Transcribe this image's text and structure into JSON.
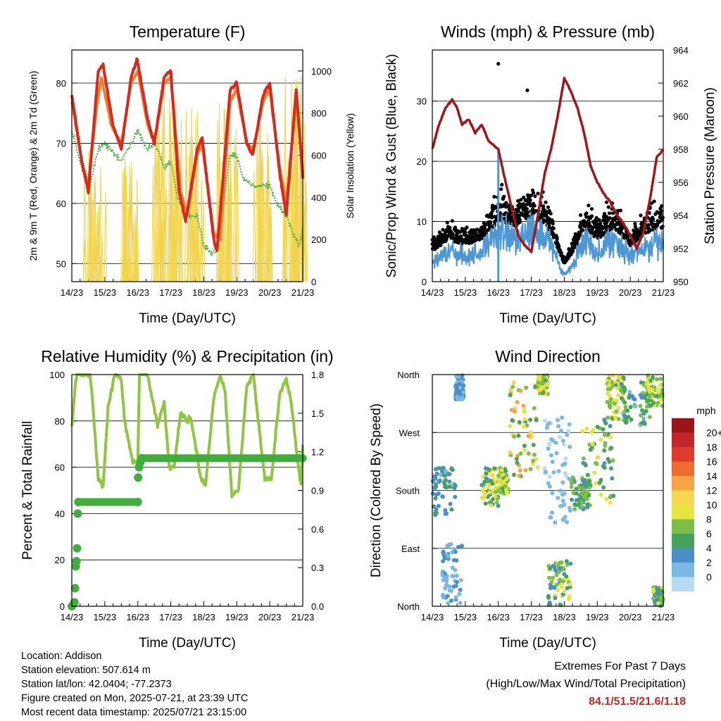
{
  "colors": {
    "temp2m": "#d42a20",
    "temp9m": "#f07f2c",
    "dewpoint": "#45b142",
    "solar": "#f2d34b",
    "wind": "#000000",
    "gust": "#4f97d4",
    "pressure": "#a3151a",
    "rh": "#8ec73f",
    "precip": "#3fae3a"
  },
  "chart_data": [
    {
      "type": "line",
      "title": "Temperature (F)",
      "xlabel": "Time (Day/UTC)",
      "ylabel": "2m & 9m T (Red, Orange) & 2m Td (Green)",
      "y2label": "Solar Insolation (Yellow)",
      "x_ticks": [
        "14/23",
        "15/23",
        "16/23",
        "17/23",
        "18/23",
        "19/23",
        "20/23",
        "21/23"
      ],
      "xlim": [
        0,
        7
      ],
      "ylim": [
        47,
        85.5
      ],
      "y_ticks": [
        50,
        60,
        70,
        80
      ],
      "y2lim": [
        0,
        1100
      ],
      "y2_ticks": [
        0,
        200,
        400,
        600,
        800,
        1000
      ],
      "grid": true,
      "series": [
        {
          "key": "temp2m",
          "x": [
            0,
            0.3,
            0.5,
            0.8,
            0.95,
            1.25,
            1.5,
            1.8,
            1.98,
            2.3,
            2.5,
            2.8,
            3.0,
            3.25,
            3.45,
            3.8,
            3.95,
            4.3,
            4.4,
            4.8,
            5.0,
            5.3,
            5.48,
            5.8,
            6.0,
            6.3,
            6.5,
            6.8,
            6.9,
            7.0
          ],
          "y": [
            78,
            67,
            62,
            82,
            83,
            73,
            69,
            81,
            84,
            74,
            70,
            81,
            82,
            62,
            57,
            69,
            71,
            54,
            52,
            79,
            80,
            70,
            68,
            78,
            80,
            65,
            58,
            79,
            72,
            64
          ]
        },
        {
          "key": "temp9m",
          "x": [
            0,
            0.3,
            0.5,
            0.75,
            0.9,
            1.2,
            1.5,
            1.8,
            2.0,
            2.3,
            2.5,
            2.8,
            3.0,
            3.3,
            3.5,
            3.8,
            3.95,
            4.3,
            4.5,
            4.8,
            5.0,
            5.3,
            5.5,
            5.8,
            6.0,
            6.3,
            6.5,
            6.8,
            6.9,
            7.0
          ],
          "y": [
            77,
            67,
            63,
            76,
            81,
            73,
            70,
            80,
            82,
            73,
            70,
            80,
            81,
            62,
            58,
            68,
            70,
            55,
            54,
            77,
            79,
            70,
            69,
            77,
            79,
            66,
            60,
            77,
            72,
            65
          ]
        },
        {
          "key": "dewpoint",
          "x": [
            0,
            0.2,
            0.5,
            0.8,
            1.0,
            1.3,
            1.5,
            1.8,
            2.0,
            2.3,
            2.5,
            2.8,
            3.0,
            3.2,
            3.5,
            3.8,
            4.0,
            4.2,
            4.4,
            4.8,
            5.0,
            5.2,
            5.5,
            5.8,
            6.0,
            6.2,
            6.5,
            6.7,
            6.9,
            7.0
          ],
          "y": [
            72,
            68,
            62,
            69,
            70,
            68,
            67,
            70,
            72,
            69,
            70,
            66,
            67,
            61,
            58,
            58,
            53,
            52,
            52,
            68,
            68,
            64,
            63,
            63,
            63,
            60,
            58,
            55,
            53,
            56
          ]
        },
        {
          "key": "solar",
          "peaks": [
            [
              0.55,
              640
            ],
            [
              0.85,
              560
            ],
            [
              1.6,
              660
            ],
            [
              1.85,
              600
            ],
            [
              2.6,
              780
            ],
            [
              2.9,
              1000
            ],
            [
              3.15,
              920
            ],
            [
              3.6,
              1100
            ],
            [
              3.9,
              860
            ],
            [
              4.55,
              1010
            ],
            [
              4.85,
              760
            ],
            [
              5.6,
              1000
            ],
            [
              5.9,
              850
            ],
            [
              6.55,
              1050
            ],
            [
              6.85,
              1080
            ],
            [
              6.95,
              1030
            ]
          ]
        }
      ]
    },
    {
      "type": "line",
      "title": "Winds (mph) & Pressure (mb)",
      "xlabel": "Time (Day/UTC)",
      "ylabel": "Sonic/Prop Wind & Gust (Blue, Black)",
      "y2label": "Station Pressure (Maroon)",
      "x_ticks": [
        "14/23",
        "15/23",
        "16/23",
        "17/23",
        "18/23",
        "19/23",
        "20/23",
        "21/23"
      ],
      "xlim": [
        0,
        7
      ],
      "ylim": [
        0,
        38.5
      ],
      "y_ticks": [
        0,
        10,
        20,
        30
      ],
      "y2lim": [
        950,
        964
      ],
      "y2_ticks": [
        950,
        952,
        954,
        956,
        958,
        960,
        962,
        964
      ],
      "grid": true,
      "series": [
        {
          "key": "pressure",
          "x": [
            0,
            0.2,
            0.4,
            0.6,
            0.75,
            0.9,
            1.1,
            1.3,
            1.5,
            1.7,
            2.0,
            2.2,
            2.4,
            2.6,
            2.8,
            3.0,
            3.2,
            3.4,
            3.6,
            3.8,
            4.0,
            4.2,
            4.4,
            4.6,
            4.8,
            5.0,
            5.2,
            5.4,
            5.6,
            5.8,
            6.0,
            6.2,
            6.4,
            6.6,
            6.8,
            7.0
          ],
          "y": [
            958,
            959.5,
            960.5,
            961.0,
            960.5,
            959.5,
            959.8,
            959.0,
            959.5,
            958.5,
            958.0,
            956.2,
            954.5,
            952.8,
            952.2,
            951.8,
            954.0,
            956.5,
            958.0,
            960.0,
            962.3,
            961.5,
            960.5,
            959.0,
            957.0,
            956.0,
            955.3,
            954.8,
            954.0,
            953.5,
            952.8,
            952.0,
            953.0,
            955.0,
            957.5,
            958.0
          ]
        },
        {
          "key": "wind",
          "avg": [
            [
              0,
              3
            ],
            [
              0.5,
              5
            ],
            [
              1.0,
              4
            ],
            [
              1.5,
              5
            ],
            [
              2.0,
              8
            ],
            [
              2.5,
              7
            ],
            [
              3.0,
              9
            ],
            [
              3.5,
              7
            ],
            [
              4.0,
              1
            ],
            [
              4.3,
              3
            ],
            [
              4.6,
              7
            ],
            [
              5.0,
              5
            ],
            [
              5.5,
              7
            ],
            [
              6.0,
              4
            ],
            [
              6.5,
              6
            ],
            [
              7.0,
              7
            ]
          ]
        },
        {
          "key": "gust",
          "points": [
            [
              2.0,
              36.2
            ],
            [
              2.88,
              31.8
            ]
          ]
        }
      ]
    },
    {
      "type": "line",
      "title": "Relative Humidity (%) & Precipitation (in)",
      "xlabel": "Time (Day/UTC)",
      "ylabel": "Percent & Total Rainfall",
      "x_ticks": [
        "14/23",
        "15/23",
        "16/23",
        "17/23",
        "18/23",
        "19/23",
        "20/23",
        "21/23"
      ],
      "xlim": [
        0,
        7
      ],
      "ylim": [
        0,
        100
      ],
      "y_ticks": [
        0,
        20,
        40,
        60,
        80,
        100
      ],
      "y2lim": [
        0,
        1.8
      ],
      "y2_ticks": [
        "0.0",
        "0.3",
        "0.6",
        "0.9",
        "1.2",
        "1.5",
        "1.8"
      ],
      "grid": true,
      "series": [
        {
          "key": "rh",
          "x": [
            0,
            0.05,
            0.1,
            0.15,
            0.2,
            0.55,
            0.62,
            0.8,
            0.95,
            1.1,
            1.3,
            1.5,
            1.6,
            1.85,
            2.0,
            2.05,
            2.3,
            2.5,
            2.6,
            2.8,
            2.95,
            3.1,
            3.3,
            3.5,
            3.6,
            3.9,
            4.05,
            4.3,
            4.5,
            4.65,
            4.85,
            5.05,
            5.3,
            5.5,
            5.65,
            5.85,
            6.05,
            6.3,
            6.5,
            6.65,
            6.85,
            6.95,
            7.0
          ],
          "y": [
            78,
            85,
            95,
            100,
            100,
            100,
            90,
            55,
            52,
            86,
            100,
            98,
            80,
            62,
            62,
            100,
            100,
            85,
            78,
            88,
            60,
            60,
            84,
            80,
            82,
            56,
            52,
            90,
            100,
            92,
            48,
            50,
            95,
            100,
            80,
            55,
            55,
            92,
            98,
            88,
            62,
            52,
            70
          ]
        },
        {
          "key": "precip",
          "x": [
            0,
            0.08,
            0.1,
            0.12,
            0.14,
            0.16,
            0.18,
            0.2,
            2.0,
            2.01,
            2.04,
            2.08,
            2.12,
            7.0
          ],
          "y": [
            0.0,
            0.03,
            0.14,
            0.31,
            0.35,
            0.45,
            0.72,
            0.81,
            0.81,
            1.0,
            1.08,
            1.12,
            1.15,
            1.15
          ]
        }
      ]
    },
    {
      "type": "scatter",
      "title": "Wind Direction",
      "xlabel": "Time (Day/UTC)",
      "ylabel": "Direction (Colored By Speed)",
      "x_ticks": [
        "14/23",
        "15/23",
        "16/23",
        "17/23",
        "18/23",
        "19/23",
        "20/23",
        "21/23"
      ],
      "xlim": [
        0,
        7
      ],
      "ylim": [
        0,
        360
      ],
      "y_ticks": [
        "North",
        "East",
        "South",
        "West",
        "North"
      ],
      "grid": true,
      "colorbar": {
        "unit": "mph",
        "labels": [
          "20+",
          "18",
          "16",
          "14",
          "12",
          "10",
          "8",
          "6",
          "4",
          "2",
          "0"
        ],
        "colors": [
          "#9a1518",
          "#c0272d",
          "#df3a2e",
          "#ef6b2e",
          "#f7a444",
          "#f5d84e",
          "#e5e53f",
          "#7dbe47",
          "#46a25a",
          "#4b8fc7",
          "#7cb8e4",
          "#b6dcf5"
        ]
      },
      "clusters": [
        {
          "x": [
            0,
            0.7
          ],
          "y": [
            140,
            215
          ],
          "speed": [
            2,
            7
          ]
        },
        {
          "x": [
            0.3,
            0.9
          ],
          "y": [
            0,
            100
          ],
          "speed": [
            1,
            5
          ]
        },
        {
          "x": [
            0.7,
            0.95
          ],
          "y": [
            320,
            360
          ],
          "speed": [
            2,
            5
          ]
        },
        {
          "x": [
            1.5,
            2.0
          ],
          "y": [
            155,
            215
          ],
          "speed": [
            4,
            13
          ]
        },
        {
          "x": [
            2.0,
            2.3
          ],
          "y": [
            175,
            215
          ],
          "speed": [
            6,
            12
          ]
        },
        {
          "x": [
            2.3,
            3.2
          ],
          "y": [
            200,
            350
          ],
          "speed": [
            5,
            15
          ]
        },
        {
          "x": [
            3.2,
            3.5
          ],
          "y": [
            330,
            360
          ],
          "speed": [
            6,
            12
          ]
        },
        {
          "x": [
            3.4,
            4.2
          ],
          "y": [
            130,
            300
          ],
          "speed": [
            0,
            3
          ]
        },
        {
          "x": [
            3.5,
            4.2
          ],
          "y": [
            0,
            70
          ],
          "speed": [
            3,
            10
          ]
        },
        {
          "x": [
            4.2,
            4.8
          ],
          "y": [
            150,
            200
          ],
          "speed": [
            3,
            9
          ]
        },
        {
          "x": [
            4.5,
            5.5
          ],
          "y": [
            160,
            290
          ],
          "speed": [
            4,
            11
          ]
        },
        {
          "x": [
            5.3,
            5.8
          ],
          "y": [
            290,
            360
          ],
          "speed": [
            6,
            13
          ]
        },
        {
          "x": [
            5.7,
            6.6
          ],
          "y": [
            280,
            350
          ],
          "speed": [
            2,
            8
          ]
        },
        {
          "x": [
            6.5,
            7.0
          ],
          "y": [
            310,
            360
          ],
          "speed": [
            5,
            12
          ]
        },
        {
          "x": [
            6.7,
            7.0
          ],
          "y": [
            0,
            30
          ],
          "speed": [
            4,
            10
          ]
        }
      ]
    }
  ],
  "info": {
    "location": "Location: Addison",
    "elevation": "Station elevation: 507.614 m",
    "latlon": "Station lat/lon: 42.0404; -77.2373",
    "created": "Figure created on Mon, 2025-07-21, at 23:39 UTC",
    "timestamp": "Most recent data timestamp: 2025/07/21 23:15:00"
  },
  "extremes": {
    "title": "Extremes For Past 7 Days",
    "subtitle": "(High/Low/Max Wind/Total Precipitation)",
    "values": "84.1/51.5/21.6/1.18"
  }
}
